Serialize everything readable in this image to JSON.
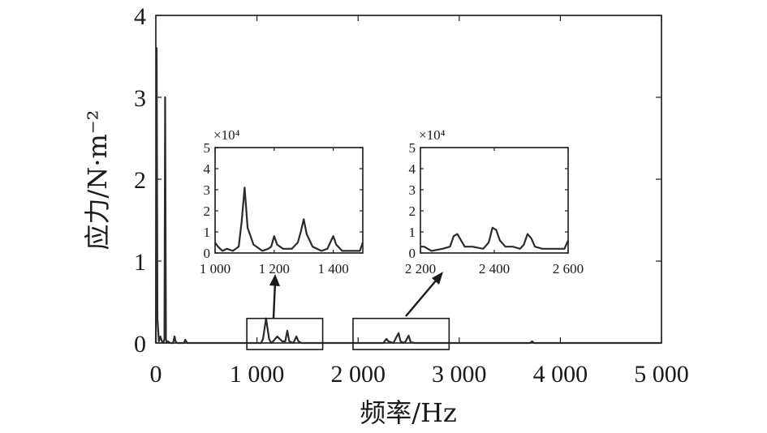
{
  "chart_data": [
    {
      "id": "main",
      "type": "line",
      "xlabel": "频率/Hz",
      "ylabel": "应力/N·m⁻²",
      "xlim": [
        0,
        5000
      ],
      "ylim": [
        0,
        4
      ],
      "x_ticks": [
        0,
        1000,
        2000,
        3000,
        4000,
        5000
      ],
      "x_tick_labels": [
        "0",
        "1 000",
        "2 000",
        "3 000",
        "4 000",
        "5 000"
      ],
      "y_ticks": [
        0,
        1,
        2,
        3,
        4
      ],
      "y_tick_labels": [
        "0",
        "1",
        "2",
        "3",
        "4"
      ],
      "grid": false,
      "series": [
        {
          "x": [
            0,
            8,
            16,
            30,
            45,
            60,
            75,
            85,
            92,
            100,
            108,
            120,
            140,
            170,
            185,
            195,
            210,
            240,
            280,
            290,
            310,
            400,
            600,
            900,
            1040,
            1060,
            1090,
            1120,
            1140,
            1160,
            1200,
            1250,
            1280,
            1300,
            1320,
            1360,
            1390,
            1410,
            1440,
            1600,
            2000,
            2250,
            2280,
            2300,
            2350,
            2370,
            2400,
            2420,
            2450,
            2470,
            2500,
            2520,
            2560,
            2600,
            3000,
            3500,
            3700,
            3720,
            3740,
            4000,
            5000
          ],
          "y": [
            0.0,
            3.6,
            0.3,
            0.02,
            0.08,
            0.02,
            0.0,
            0.05,
            3.0,
            0.05,
            0.0,
            0.02,
            0.0,
            0.0,
            0.08,
            0.02,
            0.0,
            0.0,
            0.0,
            0.04,
            0.0,
            0.0,
            0.0,
            0.0,
            0.0,
            0.05,
            0.3,
            0.05,
            0.0,
            0.02,
            0.08,
            0.02,
            0.02,
            0.15,
            0.02,
            0.0,
            0.08,
            0.02,
            0.0,
            0.0,
            0.0,
            0.0,
            0.05,
            0.02,
            0.0,
            0.05,
            0.12,
            0.02,
            0.0,
            0.02,
            0.09,
            0.01,
            0.0,
            0.0,
            0.0,
            0.0,
            0.0,
            0.02,
            0.0,
            0.0,
            0.0
          ]
        }
      ],
      "zoom_boxes": [
        {
          "x": [
            900,
            1650
          ],
          "y": [
            -0.08,
            0.3
          ]
        },
        {
          "x": [
            1950,
            2900
          ],
          "y": [
            -0.08,
            0.3
          ]
        }
      ]
    },
    {
      "id": "inset1",
      "type": "line",
      "xlim": [
        1000,
        1500
      ],
      "ylim": [
        0,
        5
      ],
      "multiplier": "×10⁴",
      "x_ticks": [
        1000,
        1200,
        1400
      ],
      "x_tick_labels": [
        "1 000",
        "1 200",
        "1 400"
      ],
      "y_ticks": [
        0,
        1,
        2,
        3,
        4,
        5
      ],
      "y_tick_labels": [
        "0",
        "1",
        "2",
        "3",
        "4",
        "5"
      ],
      "series": [
        {
          "x": [
            1000,
            1010,
            1025,
            1040,
            1060,
            1080,
            1090,
            1100,
            1110,
            1130,
            1160,
            1180,
            1190,
            1200,
            1210,
            1230,
            1260,
            1280,
            1290,
            1300,
            1310,
            1330,
            1360,
            1380,
            1390,
            1400,
            1410,
            1430,
            1460,
            1490,
            1500
          ],
          "y": [
            0.5,
            0.3,
            0.1,
            0.2,
            0.1,
            0.3,
            1.5,
            3.1,
            1.2,
            0.4,
            0.1,
            0.2,
            0.3,
            0.8,
            0.4,
            0.2,
            0.2,
            0.5,
            1.0,
            1.6,
            0.9,
            0.3,
            0.1,
            0.2,
            0.5,
            0.8,
            0.4,
            0.1,
            0.1,
            0.1,
            0.5
          ]
        }
      ]
    },
    {
      "id": "inset2",
      "type": "line",
      "xlim": [
        2200,
        2600
      ],
      "ylim": [
        0,
        5
      ],
      "multiplier": "×10⁴",
      "x_ticks": [
        2200,
        2400,
        2600
      ],
      "x_tick_labels": [
        "2 200",
        "2 400",
        "2 600"
      ],
      "y_ticks": [
        0,
        1,
        2,
        3,
        4,
        5
      ],
      "y_tick_labels": [
        "0",
        "1",
        "2",
        "3",
        "4",
        "5"
      ],
      "series": [
        {
          "x": [
            2200,
            2210,
            2230,
            2260,
            2280,
            2290,
            2300,
            2310,
            2320,
            2340,
            2370,
            2385,
            2395,
            2405,
            2415,
            2430,
            2450,
            2470,
            2480,
            2490,
            2500,
            2510,
            2530,
            2560,
            2590,
            2600
          ],
          "y": [
            0.3,
            0.3,
            0.1,
            0.2,
            0.3,
            0.8,
            0.9,
            0.6,
            0.3,
            0.3,
            0.2,
            0.5,
            1.2,
            1.1,
            0.6,
            0.3,
            0.3,
            0.2,
            0.4,
            0.9,
            0.7,
            0.3,
            0.2,
            0.2,
            0.2,
            0.6
          ]
        }
      ]
    }
  ]
}
